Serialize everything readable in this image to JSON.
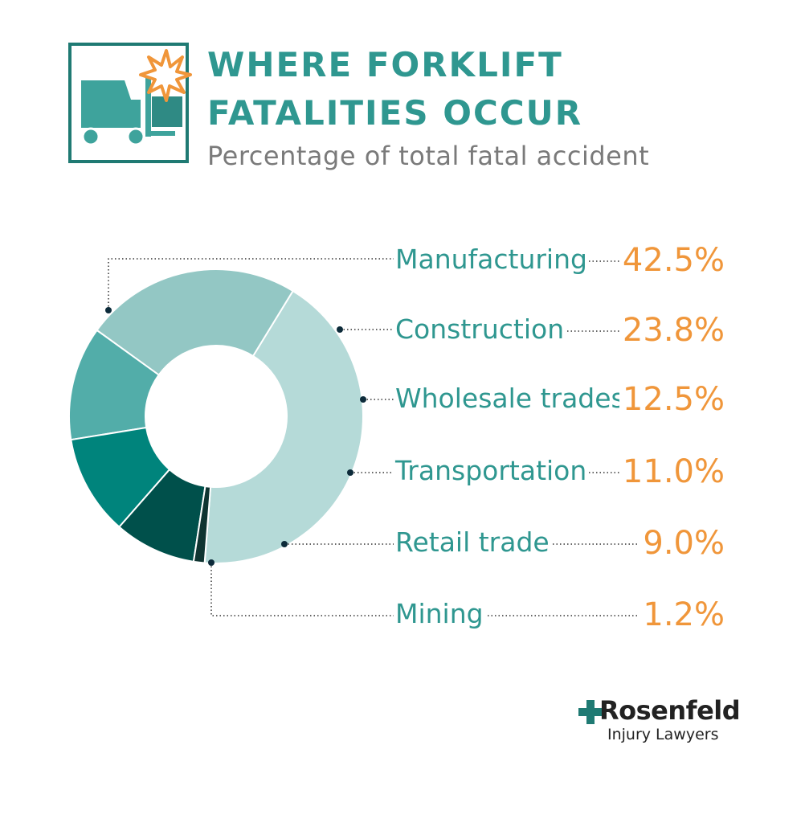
{
  "header": {
    "title_line_1": "WHERE FORKLIFT",
    "title_line_2": "FATALITIES OCCUR",
    "subtitle": "Percentage of total fatal accident",
    "icon": "forklift-crash-icon"
  },
  "colors": {
    "title": "#2f9790",
    "subtitle": "#7a7a7a",
    "values": "#f0963a",
    "icon_border": "#1f7a73"
  },
  "chart_data": {
    "type": "pie",
    "variant": "donut",
    "unit": "%",
    "categories": [
      "Manufacturing",
      "Construction",
      "Wholesale trades",
      "Transportation",
      "Retail trade",
      "Mining"
    ],
    "values": [
      42.5,
      23.8,
      12.5,
      11.0,
      9.0,
      1.2
    ],
    "value_labels": [
      "42.5%",
      "23.8%",
      "12.5%",
      "11.0%",
      "9.0%",
      "1.2%"
    ],
    "slice_colors": [
      "#b5dad8",
      "#93c7c4",
      "#52ada9",
      "#00847c",
      "#00504b",
      "#0f3431"
    ],
    "legend_placement": "right"
  },
  "brand": {
    "name": "Rosenfeld",
    "tagline": "Injury Lawyers",
    "accent": "#1f7a73"
  }
}
